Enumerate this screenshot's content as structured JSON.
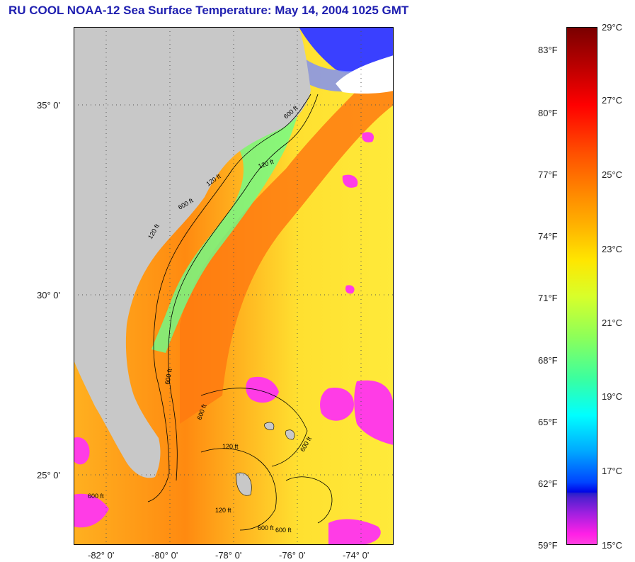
{
  "title": "RU COOL  NOAA-12  Sea Surface Temperature:  May 14, 2004 1025 GMT",
  "map": {
    "lat_labels": [
      {
        "text": "35° 0'",
        "lat": 35
      },
      {
        "text": "30° 0'",
        "lat": 30
      },
      {
        "text": "25° 0'",
        "lat": 25
      }
    ],
    "lon_labels": [
      {
        "text": "-82° 0'",
        "lon": -82
      },
      {
        "text": "-80° 0'",
        "lon": -80
      },
      {
        "text": "-78° 0'",
        "lon": -78
      },
      {
        "text": "-76° 0'",
        "lon": -76
      },
      {
        "text": "-74° 0'",
        "lon": -74
      }
    ],
    "isobath_labels": [
      "120 ft",
      "600 ft",
      "120 ft",
      "600 ft",
      "600 ft",
      "120 ft",
      "600 ft",
      "120 ft",
      "600 ft",
      "600 ft",
      "120 ft",
      "600 ft",
      "600 ft"
    ],
    "colors": {
      "land": "#c8c8c8",
      "ocean_warm": "#ff8c1a",
      "ocean_mid": "#ffe23a",
      "cloud": "#ff3ce6",
      "cool": "#4dffb0",
      "cold": "#2a3cff"
    }
  },
  "colorbar": {
    "fahrenheit": [
      "83°F",
      "80°F",
      "77°F",
      "74°F",
      "71°F",
      "68°F",
      "65°F",
      "62°F",
      "59°F"
    ],
    "celsius": [
      "29°C",
      "27°C",
      "25°C",
      "23°C",
      "21°C",
      "19°C",
      "17°C",
      "15°C"
    ]
  }
}
